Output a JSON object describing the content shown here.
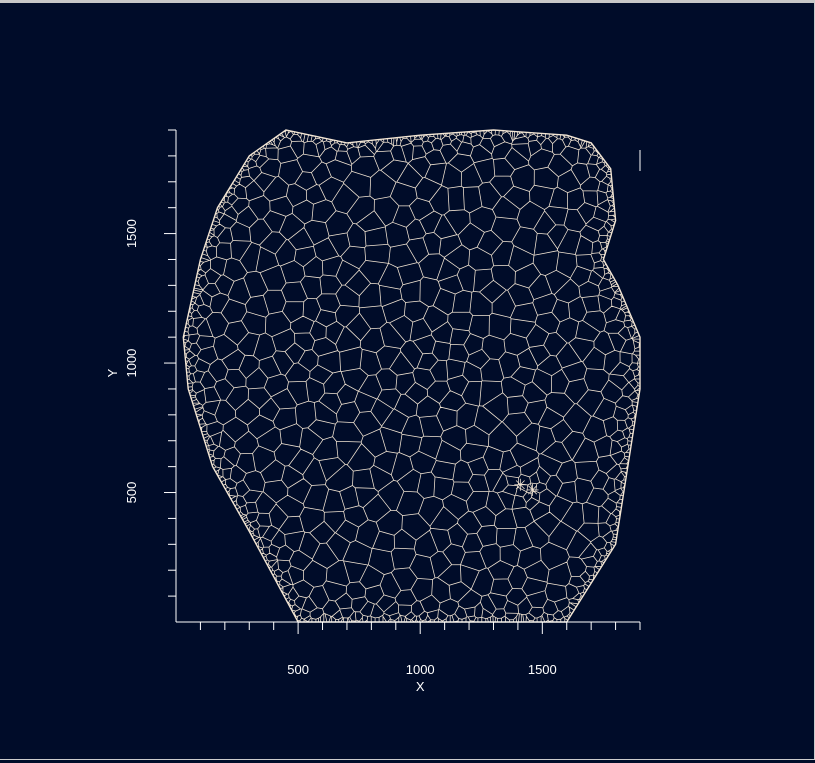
{
  "chart_data": {
    "type": "mesh",
    "xlabel": "X",
    "ylabel": "Y",
    "x_ticks": [
      "500",
      "1000",
      "1500"
    ],
    "y_ticks": [
      "500",
      "1000",
      "1500"
    ],
    "x_tick_values": [
      500,
      1000,
      1500
    ],
    "y_tick_values": [
      500,
      1000,
      1500
    ],
    "xlim": [
      0,
      1900
    ],
    "ylim": [
      0,
      1900
    ],
    "minor_tick_step": 100,
    "grid": false,
    "colors": {
      "background": "#000c29",
      "mesh": "#f3e6d4",
      "axis": "#ffffff"
    },
    "boundary": [
      [
        500,
        0
      ],
      [
        1600,
        0
      ],
      [
        1800,
        300
      ],
      [
        1900,
        900
      ],
      [
        1900,
        1100
      ],
      [
        1810,
        1300
      ],
      [
        1750,
        1400
      ],
      [
        1800,
        1550
      ],
      [
        1780,
        1750
      ],
      [
        1700,
        1850
      ],
      [
        1600,
        1880
      ],
      [
        1300,
        1900
      ],
      [
        1000,
        1880
      ],
      [
        700,
        1850
      ],
      [
        550,
        1880
      ],
      [
        450,
        1900
      ],
      [
        300,
        1800
      ],
      [
        170,
        1600
      ],
      [
        100,
        1400
      ],
      [
        30,
        1100
      ],
      [
        50,
        900
      ],
      [
        150,
        600
      ],
      [
        300,
        350
      ]
    ],
    "refinement_points": [
      [
        1410,
        530
      ],
      [
        1460,
        510
      ]
    ]
  }
}
